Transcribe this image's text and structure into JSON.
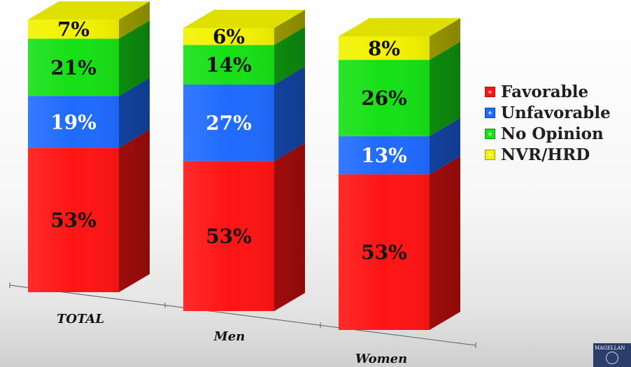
{
  "chart_data": {
    "type": "bar",
    "stacked": true,
    "categories": [
      "TOTAL",
      "Men",
      "Women"
    ],
    "series": [
      {
        "name": "Favorable",
        "values": [
          53,
          53,
          53
        ],
        "labels": [
          "53%",
          "53%",
          "53%"
        ],
        "color": "#ff1414"
      },
      {
        "name": "Unfavorable",
        "values": [
          19,
          27,
          13
        ],
        "labels": [
          "19%",
          "27%",
          "13%"
        ],
        "color": "#1f6bff"
      },
      {
        "name": "No Opinion",
        "values": [
          21,
          14,
          26
        ],
        "labels": [
          "21%",
          "14%",
          "26%"
        ],
        "color": "#16e016"
      },
      {
        "name": "NVR/HRD",
        "values": [
          7,
          6,
          8
        ],
        "labels": [
          "7%",
          "6%",
          "8%"
        ],
        "color": "#f2f200"
      }
    ],
    "legend_position": "right",
    "grid": false,
    "ylim": [
      0,
      100
    ]
  },
  "logo": {
    "text": "MAGELLAN"
  }
}
